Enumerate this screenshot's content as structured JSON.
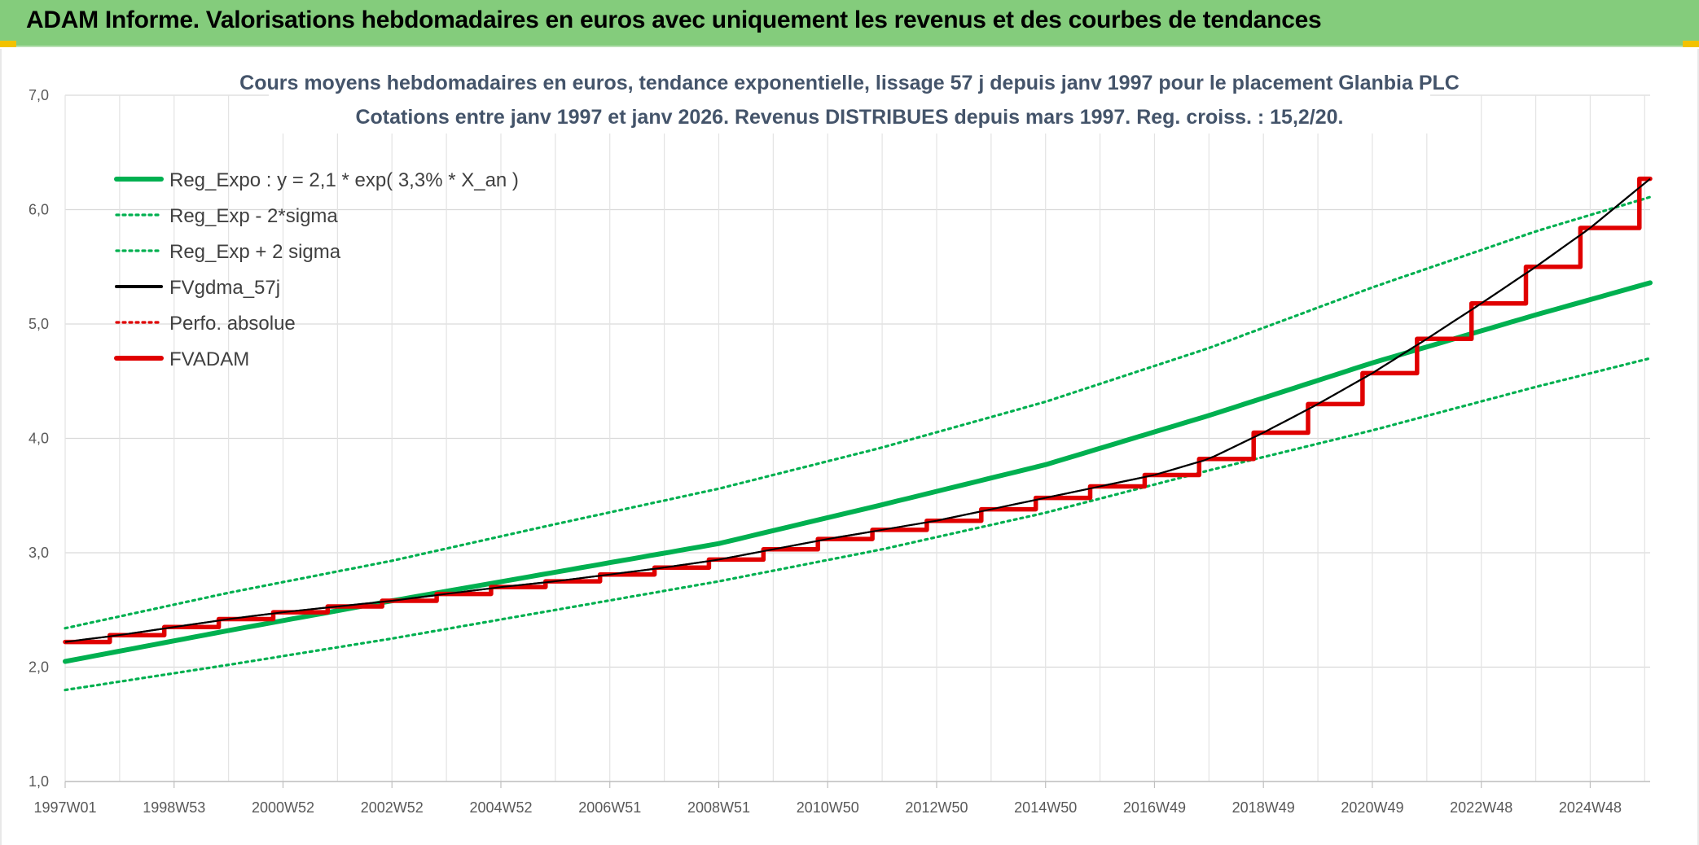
{
  "banner": {
    "title": "ADAM Informe. Valorisations hebdomadaires en euros avec uniquement les revenus et des courbes de tendances"
  },
  "chart_data": {
    "type": "line",
    "title": "Cours moyens hebdomadaires en euros, tendance exponentielle, lissage 57 j depuis janv 1997 pour le placement Glanbia PLC",
    "subtitle": "Cotations entre janv 1997 et janv 2026. Revenus DISTRIBUES depuis mars 1997. Reg. croiss. : 15,2/20.",
    "xlabel": "",
    "ylabel": "",
    "x_tick_labels": [
      "1997W01",
      "1998W53",
      "2000W52",
      "2002W52",
      "2004W52",
      "2006W51",
      "2008W51",
      "2010W50",
      "2012W50",
      "2014W50",
      "2016W49",
      "2018W49",
      "2020W49",
      "2022W48",
      "2024W48"
    ],
    "x_range_years": [
      1997.0,
      2026.1
    ],
    "ylim": [
      1.0,
      7.0
    ],
    "y_ticks": [
      "1,0",
      "2,0",
      "3,0",
      "4,0",
      "5,0",
      "6,0",
      "7,0"
    ],
    "grid": true,
    "legend_position": "top-left",
    "series": [
      {
        "name": "Reg_Expo : y = 2,1 * exp( 3,3% *  X_an )",
        "style": "solid-thick",
        "color": "#00b050",
        "x": [
          1997.0,
          2000.0,
          2003.0,
          2006.0,
          2009.0,
          2012.0,
          2015.0,
          2018.0,
          2021.0,
          2024.0,
          2026.1
        ],
        "values": [
          2.05,
          2.32,
          2.58,
          2.83,
          3.08,
          3.42,
          3.77,
          4.2,
          4.66,
          5.08,
          5.36
        ]
      },
      {
        "name": "Reg_Exp - 2*sigma",
        "style": "dotted",
        "color": "#00b050",
        "x": [
          1997.0,
          2000.0,
          2003.0,
          2006.0,
          2009.0,
          2012.0,
          2015.0,
          2018.0,
          2021.0,
          2024.0,
          2026.1
        ],
        "values": [
          1.8,
          2.02,
          2.25,
          2.5,
          2.75,
          3.03,
          3.35,
          3.72,
          4.07,
          4.45,
          4.7
        ]
      },
      {
        "name": "Reg_Exp + 2 sigma",
        "style": "dotted",
        "color": "#00b050",
        "x": [
          1997.0,
          2000.0,
          2003.0,
          2006.0,
          2009.0,
          2012.0,
          2015.0,
          2018.0,
          2021.0,
          2024.0,
          2026.1
        ],
        "values": [
          2.34,
          2.65,
          2.93,
          3.25,
          3.56,
          3.92,
          4.32,
          4.79,
          5.32,
          5.81,
          6.11
        ]
      },
      {
        "name": "FVgdma_57j",
        "style": "solid",
        "color": "#000000",
        "x": [
          1997.0,
          1998.0,
          1999.0,
          2000.0,
          2001.0,
          2002.0,
          2003.0,
          2004.0,
          2005.0,
          2006.0,
          2007.0,
          2008.0,
          2009.0,
          2010.0,
          2011.0,
          2012.0,
          2013.0,
          2014.0,
          2015.0,
          2016.0,
          2017.0,
          2018.0,
          2019.0,
          2020.0,
          2021.0,
          2022.0,
          2023.0,
          2024.0,
          2025.0,
          2026.1
        ],
        "values": [
          2.22,
          2.28,
          2.35,
          2.42,
          2.48,
          2.53,
          2.58,
          2.64,
          2.7,
          2.75,
          2.81,
          2.87,
          2.94,
          3.03,
          3.12,
          3.2,
          3.28,
          3.38,
          3.48,
          3.58,
          3.68,
          3.82,
          4.05,
          4.3,
          4.57,
          4.87,
          5.18,
          5.5,
          5.84,
          6.27
        ]
      },
      {
        "name": "Perfo. absolue",
        "style": "dotted",
        "color": "#e00000",
        "x": [
          1997.0,
          2026.1
        ],
        "values": [
          2.22,
          6.27
        ]
      },
      {
        "name": "FVADAM",
        "style": "step-thick",
        "color": "#e00000",
        "x": [
          1997.0,
          1998.0,
          1999.0,
          2000.0,
          2001.0,
          2002.0,
          2003.0,
          2004.0,
          2005.0,
          2006.0,
          2007.0,
          2008.0,
          2009.0,
          2010.0,
          2011.0,
          2012.0,
          2013.0,
          2014.0,
          2015.0,
          2016.0,
          2017.0,
          2018.0,
          2019.0,
          2020.0,
          2021.0,
          2022.0,
          2023.0,
          2024.0,
          2025.0,
          2026.1
        ],
        "values": [
          2.22,
          2.28,
          2.35,
          2.42,
          2.48,
          2.53,
          2.58,
          2.64,
          2.7,
          2.75,
          2.81,
          2.87,
          2.94,
          3.03,
          3.12,
          3.2,
          3.28,
          3.38,
          3.48,
          3.58,
          3.68,
          3.82,
          4.05,
          4.3,
          4.57,
          4.87,
          5.18,
          5.5,
          5.84,
          6.27
        ]
      }
    ]
  }
}
